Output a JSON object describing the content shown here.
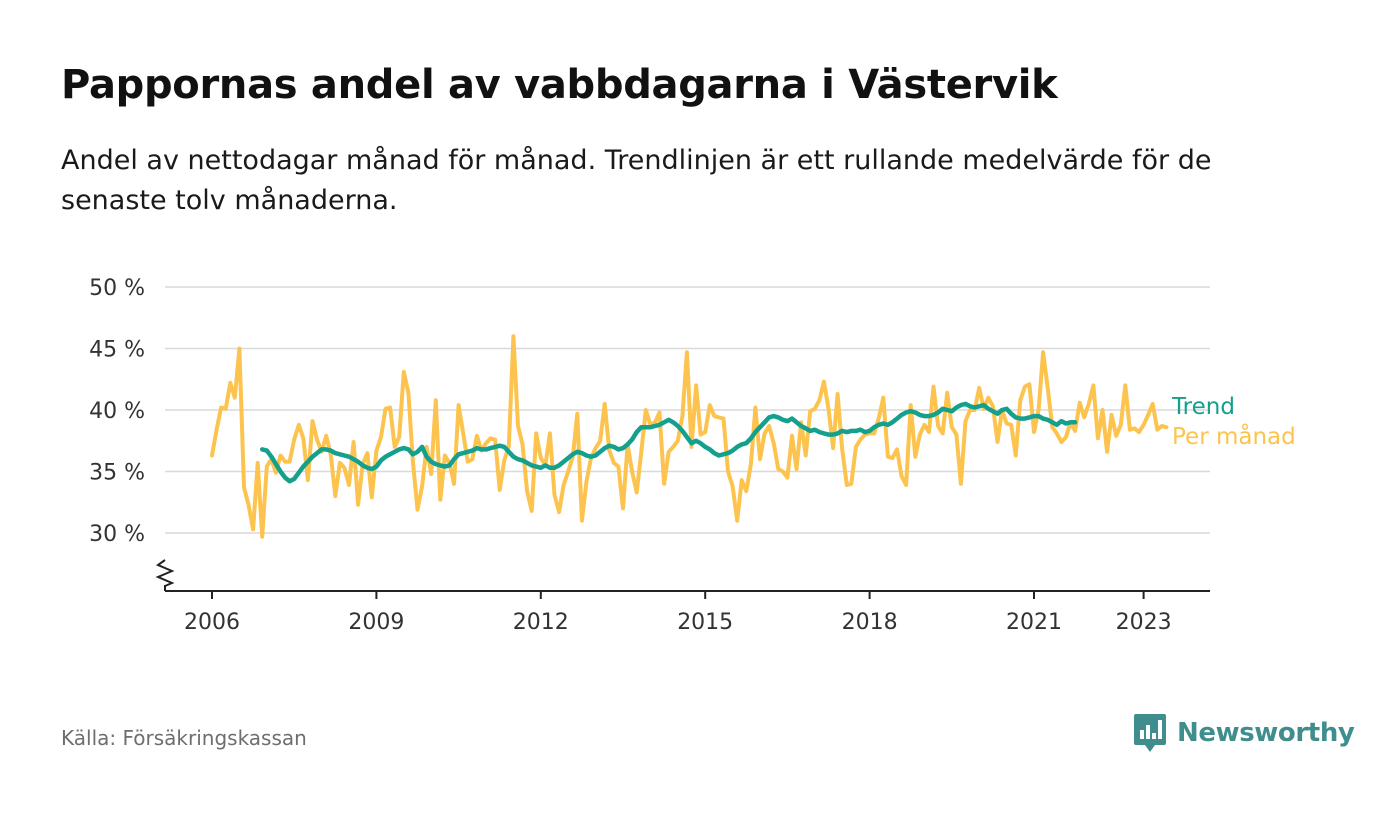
{
  "title": "Pappornas andel av vabbdagarna i Västervik",
  "subtitle": "Andel av nettodagar månad för månad. Trendlinjen är ett rullande medelvärde för de senaste tolv månaderna.",
  "source": "Källa: Försäkringskassan",
  "brand": "Newsworthy",
  "colors": {
    "trend": "#14a08c",
    "monthly": "#fcc44e",
    "grid": "#d9d9d9",
    "axis": "#222222",
    "brand": "#3f8d8c"
  },
  "chart_data": {
    "type": "line",
    "x_axis": {
      "ticks": [
        2006,
        2009,
        2012,
        2015,
        2018,
        2021,
        2023
      ],
      "range": [
        2005.4,
        2024.5
      ]
    },
    "y_axis": {
      "ticks": [
        30,
        35,
        40,
        45,
        50
      ],
      "tick_labels": [
        "30 %",
        "35 %",
        "40 %",
        "45 %",
        "50 %"
      ],
      "range": [
        25.5,
        50
      ],
      "broken_axis": true
    },
    "grid": true,
    "legend_placement": "right, at line ends",
    "series": [
      {
        "name": "Per månad",
        "color": "#fcc44e",
        "x_start": 2006.0,
        "x_step": 0.0833333,
        "values": [
          36.3,
          38.4,
          40.2,
          40.1,
          42.2,
          41.0,
          45.0,
          33.7,
          32.3,
          30.3,
          35.7,
          29.7,
          35.4,
          36.0,
          34.9,
          36.3,
          35.8,
          35.8,
          37.6,
          38.8,
          37.7,
          34.3,
          39.1,
          37.6,
          36.6,
          37.9,
          36.4,
          33.0,
          35.7,
          35.3,
          33.9,
          37.4,
          32.3,
          35.6,
          36.5,
          32.9,
          36.7,
          37.8,
          40.1,
          40.2,
          37.0,
          37.8,
          43.1,
          41.4,
          35.8,
          31.9,
          33.8,
          37.0,
          34.8,
          40.8,
          32.7,
          36.3,
          35.7,
          34.0,
          40.4,
          38.1,
          35.8,
          36.0,
          37.9,
          36.7,
          37.3,
          37.7,
          37.6,
          33.5,
          35.9,
          37.0,
          46.0,
          38.7,
          37.2,
          33.4,
          31.8,
          38.1,
          36.1,
          35.5,
          38.1,
          33.1,
          31.7,
          33.9,
          35.0,
          36.2,
          39.7,
          31.0,
          34.2,
          36.1,
          36.9,
          37.5,
          40.5,
          36.7,
          35.7,
          35.4,
          32.0,
          37.2,
          35.0,
          33.3,
          36.6,
          40.0,
          38.8,
          39.0,
          39.8,
          34.0,
          36.6,
          37.0,
          37.5,
          39.5,
          44.7,
          37.0,
          42.0,
          38.0,
          38.2,
          40.4,
          39.5,
          39.4,
          39.3,
          35.0,
          33.8,
          31.0,
          34.3,
          33.4,
          35.6,
          40.2,
          36.0,
          38.1,
          38.7,
          37.3,
          35.2,
          35.0,
          34.5,
          37.9,
          35.2,
          39.0,
          36.3,
          39.9,
          40.1,
          40.8,
          42.3,
          40.1,
          36.9,
          41.3,
          36.8,
          33.9,
          34.0,
          37.0,
          37.6,
          38.0,
          38.1,
          38.1,
          39.3,
          41.0,
          36.2,
          36.1,
          36.8,
          34.6,
          33.9,
          40.4,
          36.2,
          38.0,
          38.8,
          38.2,
          41.9,
          38.7,
          38.1,
          41.4,
          38.6,
          38.0,
          34.0,
          39.1,
          40.0,
          40.0,
          41.8,
          40.1,
          41.0,
          40.3,
          37.4,
          40.0,
          38.9,
          38.8,
          36.3,
          40.8,
          41.9,
          42.1,
          38.2,
          40.0,
          44.7,
          41.8,
          38.6,
          38.1,
          37.4,
          37.8,
          39.0,
          38.3,
          40.6,
          39.4,
          40.5,
          42.0,
          37.7,
          40.0,
          36.6,
          39.6,
          37.9,
          38.8,
          42.0,
          38.4,
          38.5,
          38.2,
          38.8,
          39.6,
          40.5,
          38.4,
          38.7,
          38.6
        ]
      },
      {
        "name": "Trend",
        "color": "#14a08c",
        "x_start": 2006.9167,
        "x_step": 0.0833333,
        "values": [
          36.8,
          36.7,
          36.2,
          35.6,
          35.0,
          34.5,
          34.2,
          34.4,
          34.9,
          35.4,
          35.8,
          36.2,
          36.5,
          36.8,
          36.8,
          36.7,
          36.5,
          36.4,
          36.3,
          36.2,
          36.0,
          35.8,
          35.5,
          35.3,
          35.2,
          35.4,
          35.9,
          36.2,
          36.4,
          36.6,
          36.8,
          36.9,
          36.8,
          36.4,
          36.6,
          37.0,
          36.2,
          35.8,
          35.6,
          35.5,
          35.4,
          35.5,
          36.0,
          36.4,
          36.5,
          36.6,
          36.7,
          36.9,
          36.8,
          36.8,
          36.9,
          37.0,
          37.1,
          37.0,
          36.6,
          36.2,
          36.0,
          35.9,
          35.7,
          35.5,
          35.4,
          35.3,
          35.5,
          35.3,
          35.3,
          35.5,
          35.8,
          36.1,
          36.4,
          36.6,
          36.5,
          36.3,
          36.2,
          36.3,
          36.6,
          36.9,
          37.1,
          37.0,
          36.8,
          36.9,
          37.2,
          37.6,
          38.2,
          38.6,
          38.6,
          38.6,
          38.7,
          38.8,
          39.0,
          39.2,
          39.0,
          38.7,
          38.3,
          37.8,
          37.3,
          37.5,
          37.3,
          37.0,
          36.8,
          36.5,
          36.3,
          36.4,
          36.5,
          36.7,
          37.0,
          37.2,
          37.3,
          37.7,
          38.2,
          38.6,
          39.0,
          39.4,
          39.5,
          39.4,
          39.2,
          39.1,
          39.3,
          39.0,
          38.7,
          38.5,
          38.3,
          38.4,
          38.2,
          38.1,
          38.0,
          38.0,
          38.1,
          38.3,
          38.2,
          38.3,
          38.3,
          38.4,
          38.2,
          38.3,
          38.6,
          38.8,
          38.9,
          38.8,
          39.0,
          39.3,
          39.6,
          39.8,
          39.9,
          39.8,
          39.6,
          39.5,
          39.5,
          39.6,
          39.8,
          40.1,
          40.0,
          39.9,
          40.2,
          40.4,
          40.5,
          40.3,
          40.2,
          40.3,
          40.4,
          40.1,
          39.9,
          39.7,
          40.0,
          40.1,
          39.7,
          39.4,
          39.3,
          39.3,
          39.4,
          39.5,
          39.5,
          39.3,
          39.2,
          39.0,
          38.8,
          39.1,
          38.9,
          39.0,
          39.0
        ]
      }
    ]
  }
}
